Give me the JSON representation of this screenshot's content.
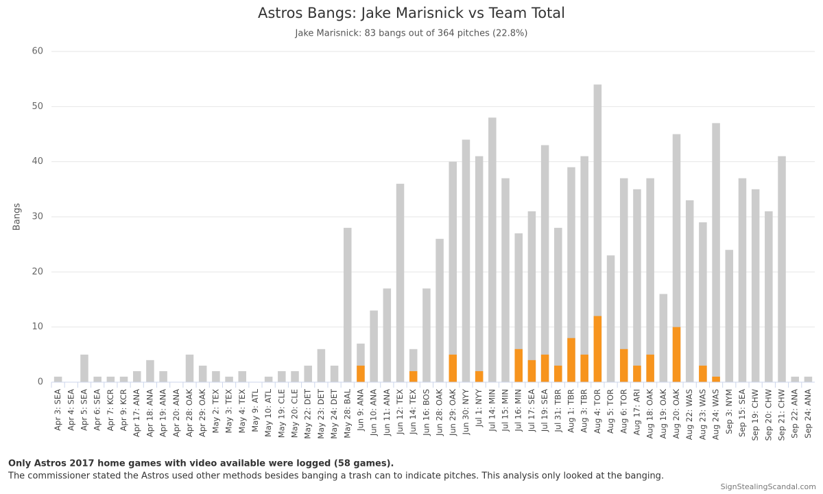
{
  "chart_data": {
    "type": "bar",
    "title": "Astros Bangs: Jake Marisnick vs Team Total",
    "subtitle": "Jake Marisnick: 83 bangs out of 364 pitches (22.8%)",
    "y_label": "Bangs",
    "notes": [
      "Only Astros 2017 home games with video available were logged (58 games).",
      "The commissioner stated the Astros used other methods besides banging a trash can to indicate pitches. This analysis only looked at the banging."
    ],
    "credit": "SignStealingScandal.com",
    "categories": [
      "Apr 3: SEA",
      "Apr 4: SEA",
      "Apr 5: SEA",
      "Apr 6: SEA",
      "Apr 7: KCR",
      "Apr 9: KCR",
      "Apr 17: ANA",
      "Apr 18: ANA",
      "Apr 19: ANA",
      "Apr 20: ANA",
      "Apr 28: OAK",
      "Apr 29: OAK",
      "May 2: TEX",
      "May 3: TEX",
      "May 4: TEX",
      "May 9: ATL",
      "May 10: ATL",
      "May 19: CLE",
      "May 20: CLE",
      "May 22: DET",
      "May 23: DET",
      "May 24: DET",
      "May 28: BAL",
      "Jun 9: ANA",
      "Jun 10: ANA",
      "Jun 11: ANA",
      "Jun 12: TEX",
      "Jun 14: TEX",
      "Jun 16: BOS",
      "Jun 28: OAK",
      "Jun 29: OAK",
      "Jun 30: NYY",
      "Jul 1: NYY",
      "Jul 14: MIN",
      "Jul 15: MIN",
      "Jul 16: MIN",
      "Jul 17: SEA",
      "Jul 19: SEA",
      "Jul 31: TBR",
      "Aug 1: TBR",
      "Aug 3: TBR",
      "Aug 4: TOR",
      "Aug 5: TOR",
      "Aug 6: TOR",
      "Aug 17: ARI",
      "Aug 18: OAK",
      "Aug 19: OAK",
      "Aug 20: OAK",
      "Aug 22: WAS",
      "Aug 23: WAS",
      "Aug 24: WAS",
      "Sep 3: NYM",
      "Sep 15: SEA",
      "Sep 19: CHW",
      "Sep 20: CHW",
      "Sep 21: CHW",
      "Sep 22: ANA",
      "Sep 24: ANA"
    ],
    "series": [
      {
        "color": "#cccccc",
        "values": [
          1,
          0,
          5,
          1,
          1,
          1,
          2,
          4,
          2,
          0,
          5,
          3,
          2,
          1,
          2,
          0,
          1,
          2,
          2,
          3,
          6,
          3,
          28,
          7,
          13,
          17,
          36,
          6,
          17,
          26,
          40,
          44,
          41,
          48,
          37,
          27,
          31,
          43,
          28,
          39,
          41,
          54,
          23,
          37,
          35,
          37,
          16,
          45,
          33,
          29,
          47,
          24,
          37,
          35,
          31,
          41,
          1,
          1
        ]
      },
      {
        "color": "#f7941d",
        "values": [
          0,
          0,
          0,
          0,
          0,
          0,
          0,
          0,
          0,
          0,
          0,
          0,
          0,
          0,
          0,
          0,
          0,
          0,
          0,
          0,
          0,
          0,
          0,
          3,
          0,
          0,
          0,
          2,
          0,
          0,
          5,
          0,
          2,
          0,
          0,
          6,
          4,
          5,
          3,
          8,
          5,
          12,
          0,
          6,
          3,
          5,
          0,
          10,
          0,
          3,
          1,
          0,
          0,
          0,
          0,
          0,
          0,
          0
        ]
      }
    ],
    "grouping": "overlap",
    "ylim": [
      0,
      60
    ],
    "yticks": [
      0,
      10,
      20,
      30,
      40,
      50,
      60
    ],
    "grid": true
  }
}
